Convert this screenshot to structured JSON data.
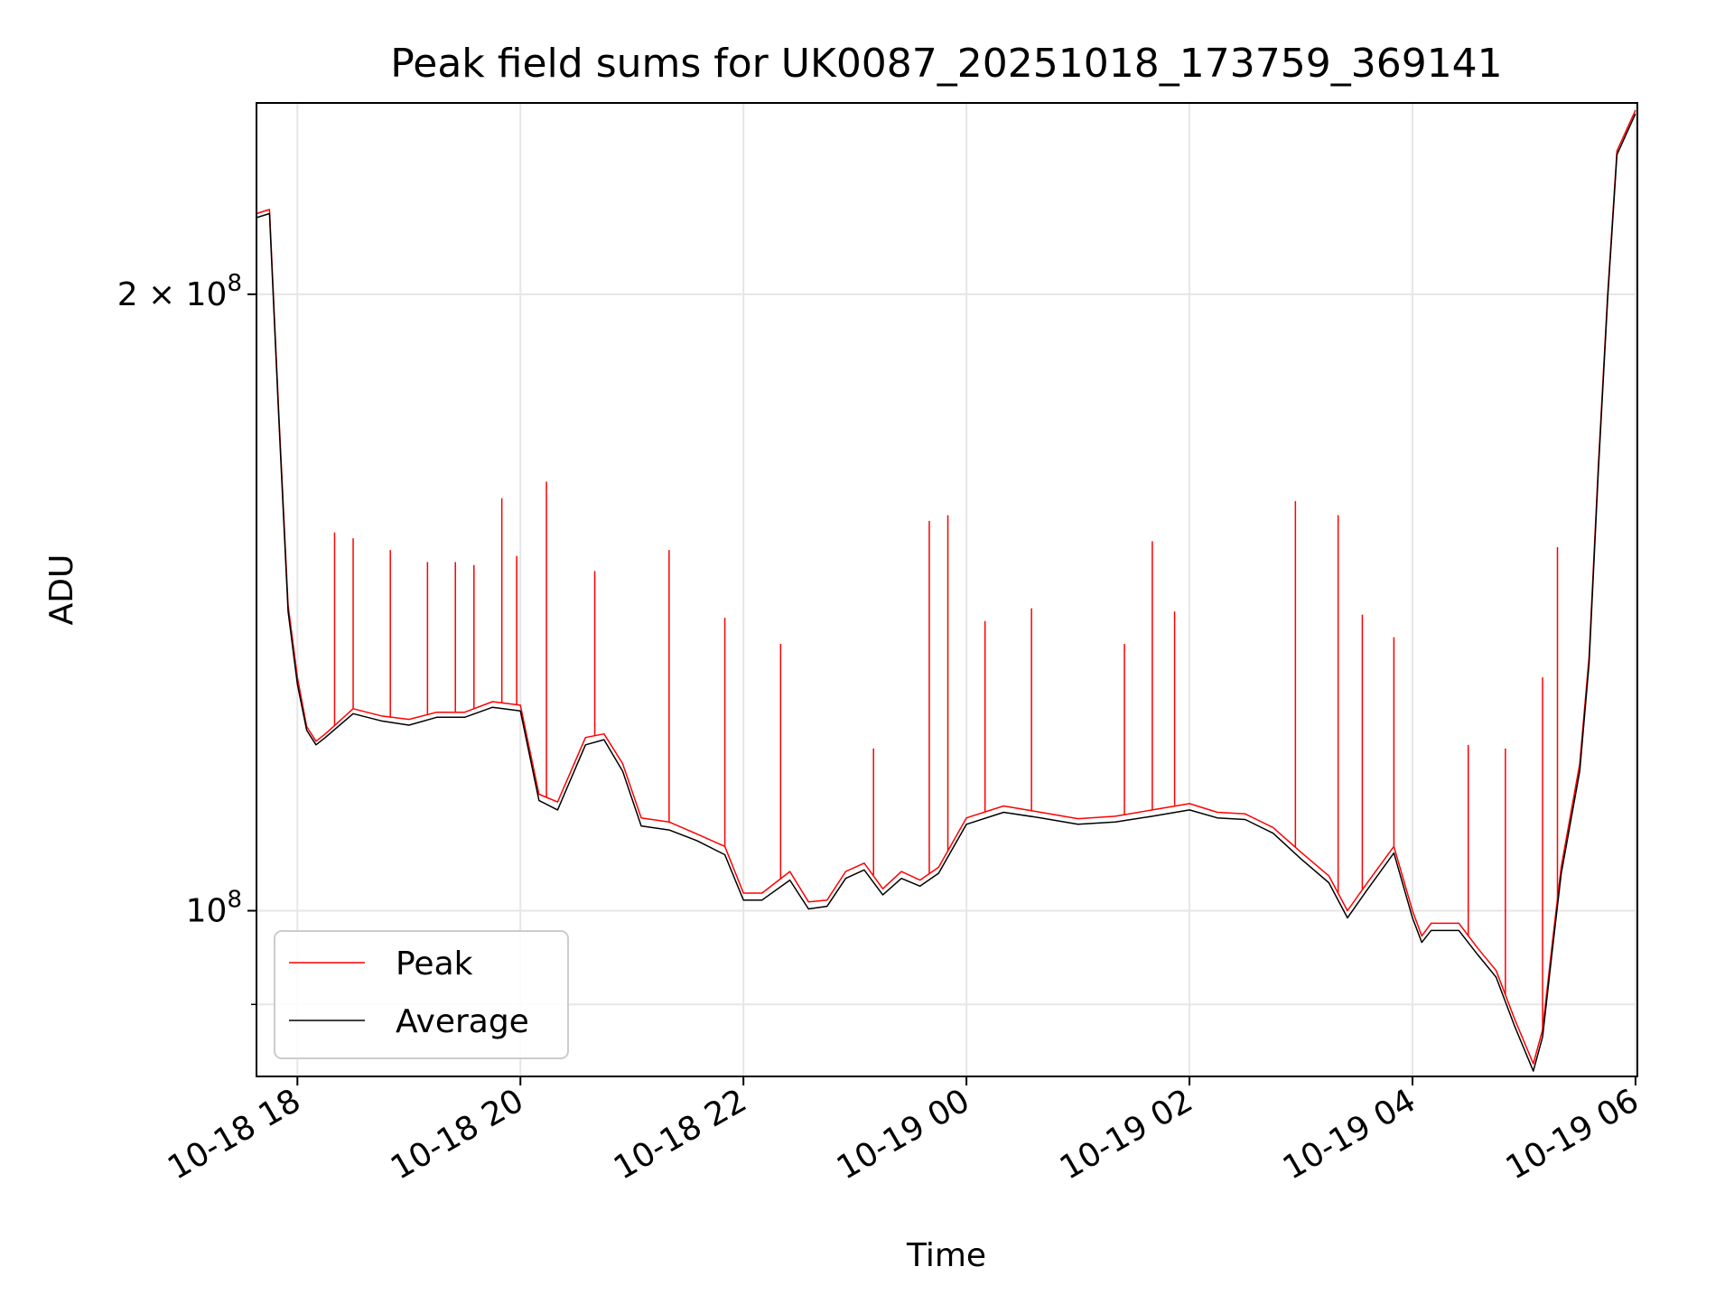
{
  "chart_data": {
    "type": "line",
    "title": "Peak field sums for UK0087_20251018_173759_369141",
    "xlabel": "Time",
    "ylabel": "ADU",
    "y_scale": "log",
    "ylim": [
      83000000,
      248000000
    ],
    "xlim": [
      "2025-10-18 17:37:59",
      "2025-10-19 06:01:00"
    ],
    "grid": true,
    "legend_position": "lower-left",
    "x_ticks": [
      {
        "label": "10-18 18",
        "value": "2025-10-18 18:00"
      },
      {
        "label": "10-18 20",
        "value": "2025-10-18 20:00"
      },
      {
        "label": "10-18 22",
        "value": "2025-10-18 22:00"
      },
      {
        "label": "10-19 00",
        "value": "2025-10-19 00:00"
      },
      {
        "label": "10-19 02",
        "value": "2025-10-19 02:00"
      },
      {
        "label": "10-19 04",
        "value": "2025-10-19 04:00"
      },
      {
        "label": "10-19 06",
        "value": "2025-10-19 06:00"
      }
    ],
    "y_major_ticks": [
      {
        "label": "10",
        "exp": "8",
        "value": 100000000
      },
      {
        "label": "2 × 10",
        "exp": "8",
        "value": 200000000
      }
    ],
    "y_minor_ticks": [
      90000000
    ],
    "series": [
      {
        "name": "Peak",
        "color": "#ff0000",
        "x": [
          "2025-10-18 17:38",
          "2025-10-18 17:45",
          "2025-10-18 17:50",
          "2025-10-18 17:55",
          "2025-10-18 18:00",
          "2025-10-18 18:05",
          "2025-10-18 18:10",
          "2025-10-18 18:15",
          "2025-10-18 18:30",
          "2025-10-18 18:45",
          "2025-10-18 19:00",
          "2025-10-18 19:15",
          "2025-10-18 19:30",
          "2025-10-18 19:45",
          "2025-10-18 20:00",
          "2025-10-18 20:10",
          "2025-10-18 20:20",
          "2025-10-18 20:35",
          "2025-10-18 20:45",
          "2025-10-18 20:55",
          "2025-10-18 21:05",
          "2025-10-18 21:20",
          "2025-10-18 21:35",
          "2025-10-18 21:50",
          "2025-10-18 22:00",
          "2025-10-18 22:10",
          "2025-10-18 22:25",
          "2025-10-18 22:35",
          "2025-10-18 22:45",
          "2025-10-18 22:55",
          "2025-10-18 23:05",
          "2025-10-18 23:15",
          "2025-10-18 23:25",
          "2025-10-18 23:35",
          "2025-10-18 23:45",
          "2025-10-19 00:00",
          "2025-10-19 00:20",
          "2025-10-19 00:40",
          "2025-10-19 01:00",
          "2025-10-19 01:20",
          "2025-10-19 01:40",
          "2025-10-19 02:00",
          "2025-10-19 02:15",
          "2025-10-19 02:30",
          "2025-10-19 02:45",
          "2025-10-19 03:00",
          "2025-10-19 03:15",
          "2025-10-19 03:25",
          "2025-10-19 03:35",
          "2025-10-19 03:50",
          "2025-10-19 04:00",
          "2025-10-19 04:05",
          "2025-10-19 04:10",
          "2025-10-19 04:25",
          "2025-10-19 04:35",
          "2025-10-19 04:45",
          "2025-10-19 04:55",
          "2025-10-19 05:05",
          "2025-10-19 05:10",
          "2025-10-19 05:15",
          "2025-10-19 05:20",
          "2025-10-19 05:30",
          "2025-10-19 05:35",
          "2025-10-19 05:40",
          "2025-10-19 05:45",
          "2025-10-19 05:50",
          "2025-10-19 06:00"
        ],
        "y": [
          219000000,
          220000000,
          175000000,
          141000000,
          130000000,
          123000000,
          121000000,
          122000000,
          125500000,
          124500000,
          124000000,
          125000000,
          125000000,
          126500000,
          126000000,
          114000000,
          113000000,
          121500000,
          122000000,
          118000000,
          111000000,
          110500000,
          109000000,
          107500000,
          102000000,
          102000000,
          104500000,
          101000000,
          101200000,
          104500000,
          105500000,
          102500000,
          104500000,
          103500000,
          105000000,
          111000000,
          112500000,
          111700000,
          110900000,
          111200000,
          112000000,
          112800000,
          111700000,
          111500000,
          109800000,
          106800000,
          104000000,
          100000000,
          103000000,
          107500000,
          100000000,
          97200000,
          98600000,
          98600000,
          95900000,
          93500000,
          88500000,
          84200000,
          87500000,
          96000000,
          105000000,
          118000000,
          133000000,
          165000000,
          200000000,
          235000000,
          246000000
        ],
        "spikes": [
          {
            "x": "2025-10-18 17:52",
            "y": 160000000
          },
          {
            "x": "2025-10-18 18:20",
            "y": 153000000
          },
          {
            "x": "2025-10-18 18:30",
            "y": 152000000
          },
          {
            "x": "2025-10-18 18:50",
            "y": 150000000
          },
          {
            "x": "2025-10-18 19:10",
            "y": 148000000
          },
          {
            "x": "2025-10-18 19:25",
            "y": 148000000
          },
          {
            "x": "2025-10-18 19:35",
            "y": 147500000
          },
          {
            "x": "2025-10-18 19:50",
            "y": 159000000
          },
          {
            "x": "2025-10-18 19:58",
            "y": 149000000
          },
          {
            "x": "2025-10-18 20:14",
            "y": 162000000
          },
          {
            "x": "2025-10-18 20:40",
            "y": 146500000
          },
          {
            "x": "2025-10-18 21:20",
            "y": 150000000
          },
          {
            "x": "2025-10-18 21:50",
            "y": 139000000
          },
          {
            "x": "2025-10-18 22:20",
            "y": 135000000
          },
          {
            "x": "2025-10-18 23:10",
            "y": 120000000
          },
          {
            "x": "2025-10-18 23:40",
            "y": 155000000
          },
          {
            "x": "2025-10-18 23:50",
            "y": 156000000
          },
          {
            "x": "2025-10-19 00:10",
            "y": 138500000
          },
          {
            "x": "2025-10-19 00:35",
            "y": 140500000
          },
          {
            "x": "2025-10-19 01:25",
            "y": 135000000
          },
          {
            "x": "2025-10-19 01:40",
            "y": 151500000
          },
          {
            "x": "2025-10-19 01:52",
            "y": 140000000
          },
          {
            "x": "2025-10-19 02:57",
            "y": 158500000
          },
          {
            "x": "2025-10-19 03:20",
            "y": 156000000
          },
          {
            "x": "2025-10-19 03:33",
            "y": 139500000
          },
          {
            "x": "2025-10-19 03:50",
            "y": 136000000
          },
          {
            "x": "2025-10-19 04:30",
            "y": 120500000
          },
          {
            "x": "2025-10-19 04:50",
            "y": 120000000
          },
          {
            "x": "2025-10-19 05:10",
            "y": 130000000
          },
          {
            "x": "2025-10-19 05:18",
            "y": 150500000
          }
        ]
      },
      {
        "name": "Average",
        "color": "#000000",
        "x": [
          "2025-10-18 17:38",
          "2025-10-18 17:45",
          "2025-10-18 17:50",
          "2025-10-18 17:55",
          "2025-10-18 18:00",
          "2025-10-18 18:05",
          "2025-10-18 18:10",
          "2025-10-18 18:15",
          "2025-10-18 18:30",
          "2025-10-18 18:45",
          "2025-10-18 19:00",
          "2025-10-18 19:15",
          "2025-10-18 19:30",
          "2025-10-18 19:45",
          "2025-10-18 20:00",
          "2025-10-18 20:10",
          "2025-10-18 20:20",
          "2025-10-18 20:35",
          "2025-10-18 20:45",
          "2025-10-18 20:55",
          "2025-10-18 21:05",
          "2025-10-18 21:20",
          "2025-10-18 21:35",
          "2025-10-18 21:50",
          "2025-10-18 22:00",
          "2025-10-18 22:10",
          "2025-10-18 22:25",
          "2025-10-18 22:35",
          "2025-10-18 22:45",
          "2025-10-18 22:55",
          "2025-10-18 23:05",
          "2025-10-18 23:15",
          "2025-10-18 23:25",
          "2025-10-18 23:35",
          "2025-10-18 23:45",
          "2025-10-19 00:00",
          "2025-10-19 00:20",
          "2025-10-19 00:40",
          "2025-10-19 01:00",
          "2025-10-19 01:20",
          "2025-10-19 01:40",
          "2025-10-19 02:00",
          "2025-10-19 02:15",
          "2025-10-19 02:30",
          "2025-10-19 02:45",
          "2025-10-19 03:00",
          "2025-10-19 03:15",
          "2025-10-19 03:25",
          "2025-10-19 03:35",
          "2025-10-19 03:50",
          "2025-10-19 04:00",
          "2025-10-19 04:05",
          "2025-10-19 04:10",
          "2025-10-19 04:25",
          "2025-10-19 04:35",
          "2025-10-19 04:45",
          "2025-10-19 04:55",
          "2025-10-19 05:05",
          "2025-10-19 05:10",
          "2025-10-19 05:15",
          "2025-10-19 05:20",
          "2025-10-19 05:30",
          "2025-10-19 05:35",
          "2025-10-19 05:40",
          "2025-10-19 05:45",
          "2025-10-19 05:50",
          "2025-10-19 06:00"
        ],
        "y": [
          218000000,
          219000000,
          174000000,
          140000000,
          129000000,
          122500000,
          120500000,
          121500000,
          124800000,
          123800000,
          123200000,
          124300000,
          124300000,
          125700000,
          125200000,
          113200000,
          112000000,
          120500000,
          121200000,
          117000000,
          110000000,
          109500000,
          108200000,
          106500000,
          101200000,
          101200000,
          103500000,
          100200000,
          100500000,
          103700000,
          104700000,
          101800000,
          103700000,
          102800000,
          104300000,
          110200000,
          111700000,
          111000000,
          110200000,
          110500000,
          111200000,
          112000000,
          111000000,
          110800000,
          109100000,
          106000000,
          103200000,
          99200000,
          102200000,
          106700000,
          99200000,
          96500000,
          97800000,
          97800000,
          95200000,
          92800000,
          87800000,
          83500000,
          86800000,
          95200000,
          104200000,
          117000000,
          132000000,
          164000000,
          199000000,
          234000000,
          245000000
        ]
      }
    ]
  }
}
